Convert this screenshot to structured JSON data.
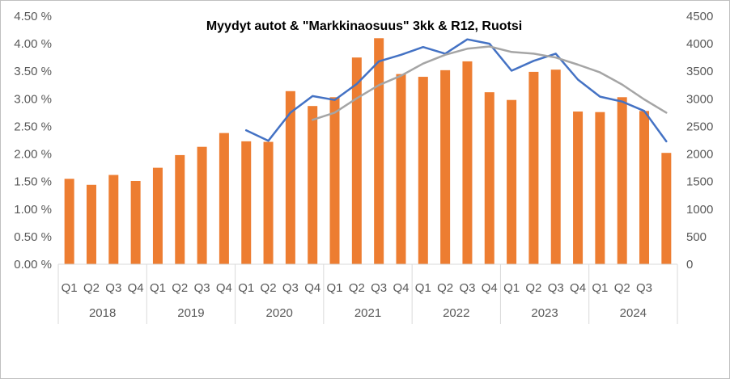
{
  "chart_data": {
    "type": "bar",
    "title": "Myydyt autot & \"Markkinaosuus\"  3kk & R12, Ruotsi",
    "quarters": [
      "Q1",
      "Q2",
      "Q3",
      "Q4",
      "Q1",
      "Q2",
      "Q3",
      "Q4",
      "Q1",
      "Q2",
      "Q3",
      "Q4",
      "Q1",
      "Q2",
      "Q3",
      "Q4",
      "Q1",
      "Q2",
      "Q3",
      "Q4",
      "Q1",
      "Q2",
      "Q3",
      "Q4",
      "Q1",
      "Q2",
      "Q3",
      ""
    ],
    "years": [
      "2018",
      "2019",
      "2020",
      "2021",
      "2022",
      "2023",
      "2024"
    ],
    "y_left": {
      "ticks": [
        "0.00 %",
        "0.50 %",
        "1.00 %",
        "1.50 %",
        "2.00 %",
        "2.50 %",
        "3.00 %",
        "3.50 %",
        "4.00 %",
        "4.50 %"
      ],
      "range": [
        0,
        4.5
      ]
    },
    "y_right": {
      "ticks": [
        "0",
        "500",
        "1000",
        "1500",
        "2000",
        "2500",
        "3000",
        "3500",
        "4000",
        "4500"
      ],
      "range": [
        0,
        4500
      ]
    },
    "series": [
      {
        "axis": "left",
        "kind": "bar",
        "color": "#ED7D31",
        "values": [
          1.55,
          1.44,
          1.62,
          1.51,
          1.75,
          1.98,
          2.13,
          2.38,
          2.23,
          2.22,
          3.14,
          2.87,
          3.03,
          3.75,
          4.1,
          3.45,
          3.4,
          3.52,
          3.68,
          3.12,
          2.98,
          3.49,
          3.53,
          2.77,
          2.76,
          3.03,
          2.78,
          2.02
        ]
      },
      {
        "axis": "right",
        "kind": "line",
        "color": "#4472C4",
        "values": [
          null,
          null,
          null,
          null,
          null,
          null,
          null,
          null,
          2430,
          2240,
          2750,
          3050,
          2980,
          3270,
          3680,
          3800,
          3940,
          3820,
          4080,
          4000,
          3510,
          3690,
          3820,
          3350,
          3040,
          2950,
          2780,
          2230
        ]
      },
      {
        "axis": "right",
        "kind": "line",
        "color": "#A5A5A5",
        "values": [
          null,
          null,
          null,
          null,
          null,
          null,
          null,
          null,
          null,
          null,
          null,
          2620,
          2750,
          3010,
          3250,
          3420,
          3640,
          3800,
          3910,
          3950,
          3850,
          3820,
          3750,
          3620,
          3480,
          3260,
          2990,
          2750
        ]
      }
    ]
  }
}
